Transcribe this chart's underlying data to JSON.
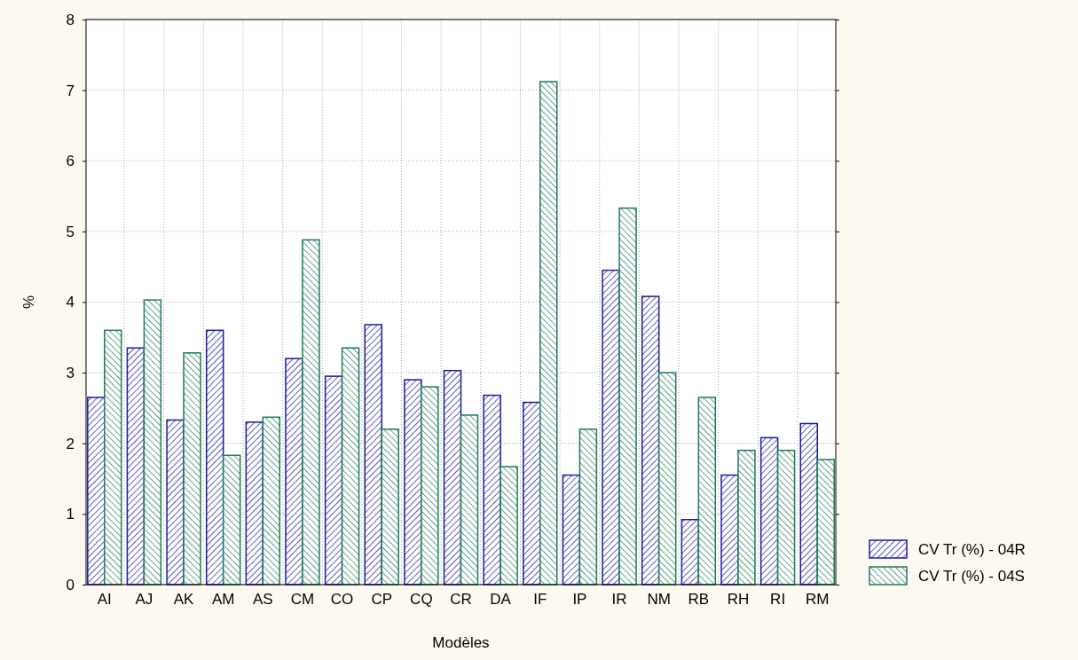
{
  "chart_data": {
    "type": "bar",
    "xlabel": "Modèles",
    "ylabel": "%",
    "categories": [
      "AI",
      "AJ",
      "AK",
      "AM",
      "AS",
      "CM",
      "CO",
      "CP",
      "CQ",
      "CR",
      "DA",
      "IF",
      "IP",
      "IR",
      "NM",
      "RB",
      "RH",
      "RI",
      "RM"
    ],
    "series": [
      {
        "name": "CV Tr (%) - 04R",
        "color": "#1a1aa0",
        "values": [
          2.65,
          3.35,
          2.33,
          3.6,
          2.3,
          3.2,
          2.95,
          3.68,
          2.9,
          3.03,
          2.68,
          2.58,
          1.55,
          4.45,
          4.08,
          0.92,
          1.55,
          2.08,
          2.28
        ]
      },
      {
        "name": "CV Tr (%) - 04S",
        "color": "#1e7a55",
        "values": [
          3.6,
          4.03,
          3.28,
          1.83,
          2.37,
          4.88,
          3.35,
          2.2,
          2.8,
          2.4,
          1.67,
          7.12,
          2.2,
          5.33,
          3.0,
          2.65,
          1.9,
          1.9,
          1.77
        ]
      }
    ],
    "ylim": [
      0,
      8
    ],
    "yticks": [
      0,
      1,
      2,
      3,
      4,
      5,
      6,
      7,
      8
    ],
    "grid": true,
    "legend": "bottom right"
  }
}
